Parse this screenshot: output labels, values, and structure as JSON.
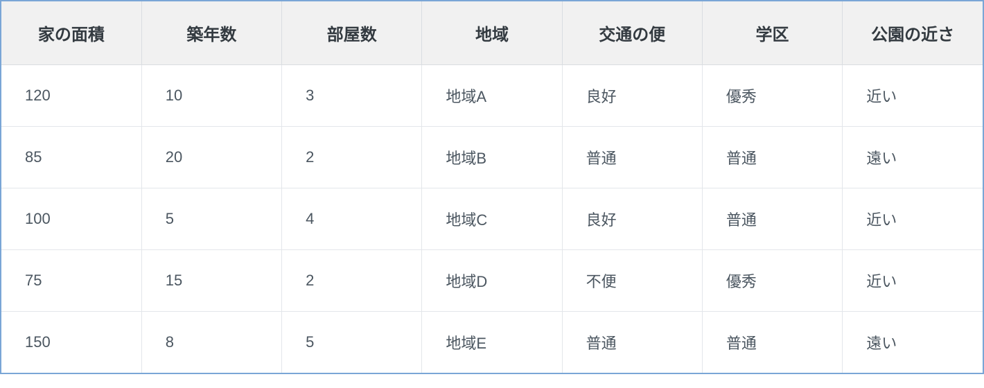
{
  "table": {
    "type": "table",
    "border_color": "#7aa6d6",
    "header_bg": "#f1f1f1",
    "header_text_color": "#333a40",
    "cell_text_color": "#4b5660",
    "grid_color": "#e3e6ea",
    "header_fontsize": 24,
    "cell_fontsize": 22,
    "column_widths_pct": [
      14.3,
      14.3,
      14.3,
      14.3,
      14.3,
      14.2,
      14.3
    ],
    "columns": [
      "家の面積",
      "築年数",
      "部屋数",
      "地域",
      "交通の便",
      "学区",
      "公園の近さ"
    ],
    "rows": [
      [
        "120",
        "10",
        "3",
        "地域A",
        "良好",
        "優秀",
        "近い"
      ],
      [
        "85",
        "20",
        "2",
        "地域B",
        "普通",
        "普通",
        "遠い"
      ],
      [
        "100",
        "5",
        "4",
        "地域C",
        "良好",
        "普通",
        "近い"
      ],
      [
        "75",
        "15",
        "2",
        "地域D",
        "不便",
        "優秀",
        "近い"
      ],
      [
        "150",
        "8",
        "5",
        "地域E",
        "普通",
        "普通",
        "遠い"
      ]
    ]
  }
}
